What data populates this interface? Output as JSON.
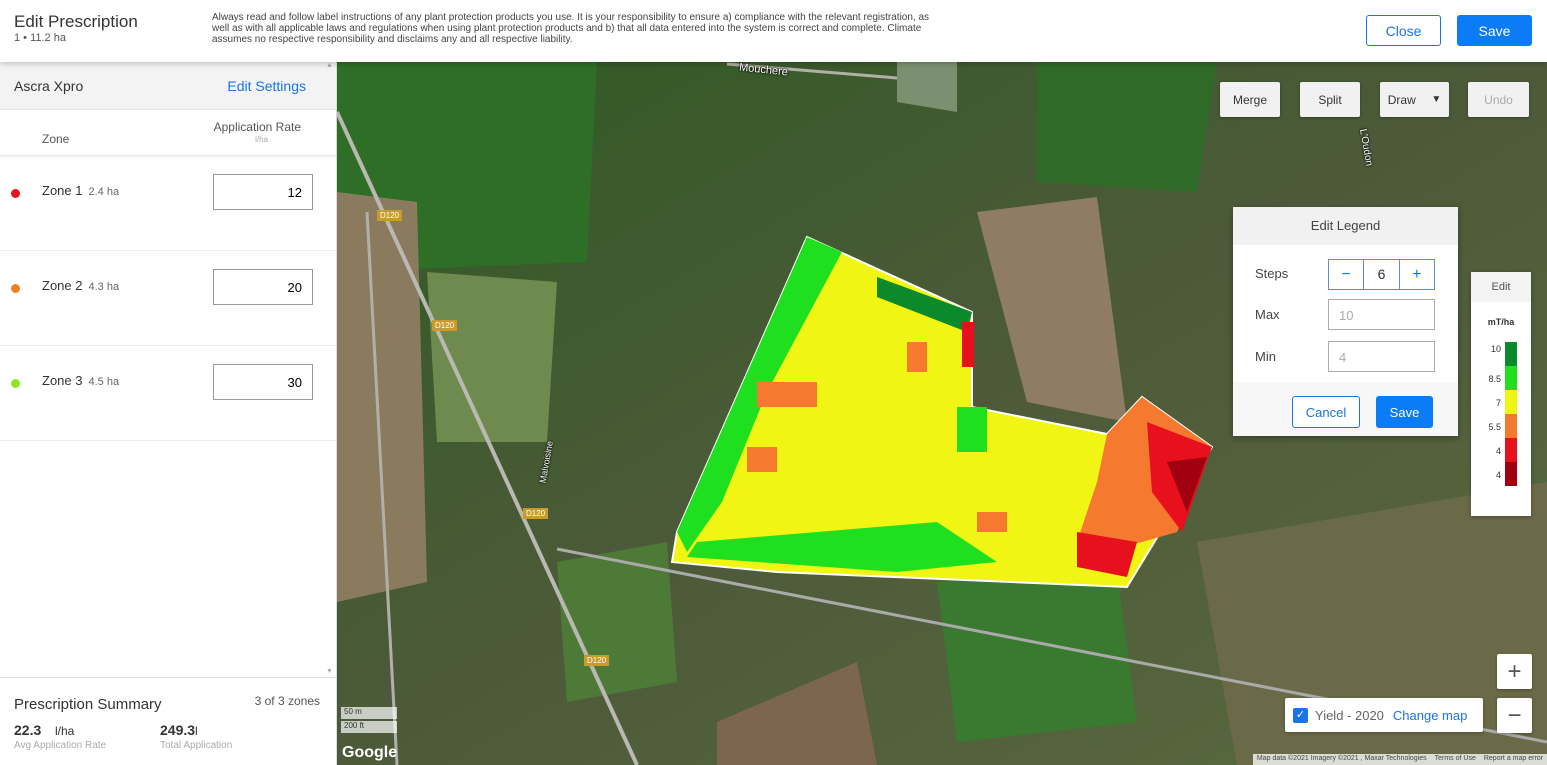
{
  "header": {
    "title": "Edit Prescription",
    "subtitle": "1 • 11.2 ha",
    "disclaimer": "Always read and follow label instructions of any plant protection products you use. It is your responsibility to ensure a) compliance with the relevant registration, as well as with all applicable laws and regulations when using plant protection products and b) that all data entered into the system is correct and complete. Climate assumes no respective responsibility and disclaims any and all respective liability.",
    "close_label": "Close",
    "save_label": "Save"
  },
  "sidebar": {
    "product": "Ascra Xpro",
    "edit_settings": "Edit Settings",
    "col_zone": "Zone",
    "col_rate": "Application Rate",
    "col_unit": "l/ha",
    "zones": [
      {
        "name": "Zone 1",
        "area": "2.4 ha",
        "rate": "12",
        "color": "#e8141c"
      },
      {
        "name": "Zone 2",
        "area": "4.3 ha",
        "rate": "20",
        "color": "#f07f22"
      },
      {
        "name": "Zone 3",
        "area": "4.5 ha",
        "rate": "30",
        "color": "#8ee81f"
      }
    ]
  },
  "summary": {
    "title": "Prescription Summary",
    "count": "3 of 3 zones",
    "avg_value": "22.3",
    "avg_unit": "l/ha",
    "avg_label": "Avg Application Rate",
    "total_value": "249.3",
    "total_unit": "l",
    "total_label": "Total Application"
  },
  "map": {
    "tools": {
      "merge": "Merge",
      "split": "Split",
      "draw": "Draw",
      "undo": "Undo"
    },
    "roads": {
      "d120": "D120",
      "malvoisine": "Malvoisine",
      "loudon": "L'Oudon",
      "mouchere": "Mouchere"
    },
    "edit_legend": {
      "title": "Edit Legend",
      "steps_label": "Steps",
      "steps": "6",
      "minus": "−",
      "plus": "+",
      "max_label": "Max",
      "max": "10",
      "min_label": "Min",
      "min": "4",
      "cancel": "Cancel",
      "save": "Save"
    },
    "legend": {
      "edit": "Edit",
      "unit": "mT/ha",
      "items": [
        {
          "label": "10",
          "color": "#0a8a2a"
        },
        {
          "label": "8.5",
          "color": "#1fe01f"
        },
        {
          "label": "7",
          "color": "#f0f514"
        },
        {
          "label": "5.5",
          "color": "#f57a30"
        },
        {
          "label": "4",
          "color": "#e8101c"
        },
        {
          "label": "4",
          "color": "#a00010"
        }
      ]
    },
    "layer": {
      "name": "Yield - 2020",
      "checked": true,
      "change": "Change map"
    },
    "zoom_in": "+",
    "zoom_out": "−",
    "scale": {
      "metric": "50 m",
      "imperial": "200 ft"
    },
    "google": "Google",
    "attribution": "Map data ©2021 Imagery ©2021 , Maxar Technologies",
    "terms": "Terms of Use",
    "report": "Report a map error"
  }
}
